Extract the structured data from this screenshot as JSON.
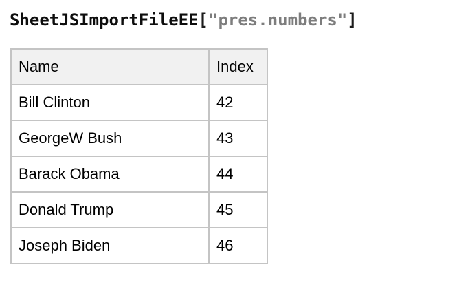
{
  "page": {
    "background_color": "#ffffff"
  },
  "title": {
    "component": "SheetJSImportFileEE",
    "bracket_open": "[",
    "filename": "\"pres.numbers\"",
    "bracket_close": "]",
    "component_color": "#0d0d0d",
    "bracket_color": "#1c1c1c",
    "filename_color": "#7d7d7d"
  },
  "table": {
    "header_bg": "#f1f1f1",
    "border_color": "#c4c4c4",
    "columns": [
      "Name",
      "Index"
    ],
    "rows": [
      {
        "name": "Bill Clinton",
        "index": 42
      },
      {
        "name": "GeorgeW Bush",
        "index": 43
      },
      {
        "name": "Barack Obama",
        "index": 44
      },
      {
        "name": "Donald Trump",
        "index": 45
      },
      {
        "name": "Joseph Biden",
        "index": 46
      }
    ]
  }
}
